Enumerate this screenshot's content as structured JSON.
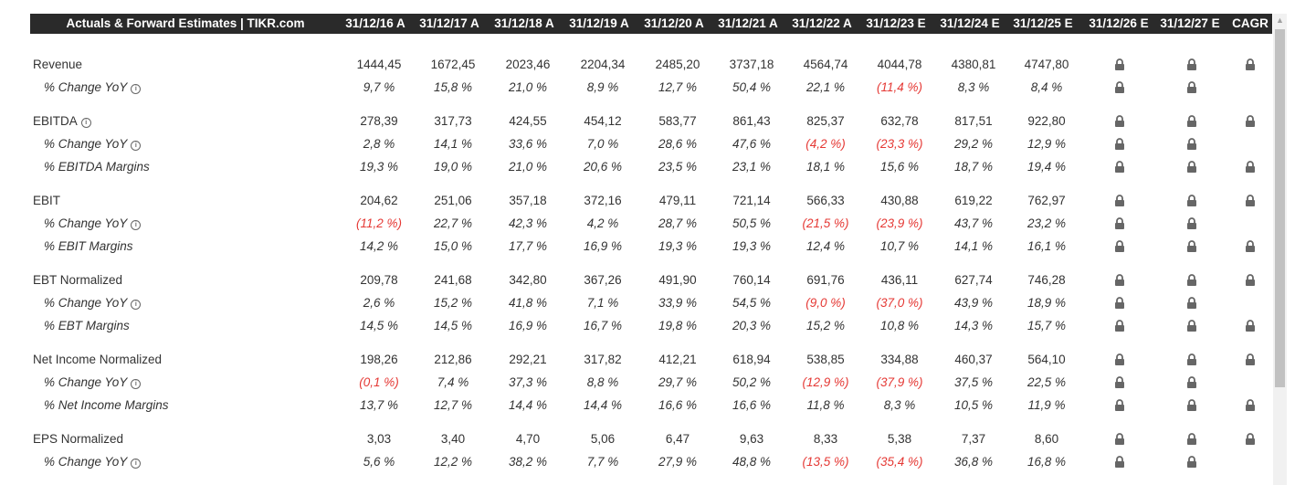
{
  "header": {
    "title": "Actuals & Forward Estimates | TIKR.com",
    "columns": [
      "31/12/16 A",
      "31/12/17 A",
      "31/12/18 A",
      "31/12/19 A",
      "31/12/20 A",
      "31/12/21 A",
      "31/12/22 A",
      "31/12/23 E",
      "31/12/24 E",
      "31/12/25 E",
      "31/12/26 E",
      "31/12/27 E",
      "CAGR"
    ]
  },
  "colors": {
    "header_bg": "#2a2a2a",
    "negative": "#e53935",
    "text": "#333333",
    "lock": "#666666"
  },
  "icons": {
    "info": "info-icon",
    "lock": "lock-icon"
  },
  "rows": [
    {
      "label": "Revenue",
      "type": "main",
      "gap": "first",
      "values": [
        "1444,45",
        "1672,45",
        "2023,46",
        "2204,34",
        "2485,20",
        "3737,18",
        "4564,74",
        "4044,78",
        "4380,81",
        "4747,80"
      ],
      "locks": [
        true,
        true,
        true
      ]
    },
    {
      "label": "% Change YoY",
      "type": "sub",
      "info": true,
      "values": [
        "9,7 %",
        "15,8 %",
        "21,0 %",
        "8,9 %",
        "12,7 %",
        "50,4 %",
        "22,1 %",
        "(11,4 %)",
        "8,3 %",
        "8,4 %"
      ],
      "locks": [
        true,
        true,
        false
      ]
    },
    {
      "label": "EBITDA",
      "type": "main",
      "gap": "gap",
      "info": true,
      "values": [
        "278,39",
        "317,73",
        "424,55",
        "454,12",
        "583,77",
        "861,43",
        "825,37",
        "632,78",
        "817,51",
        "922,80"
      ],
      "locks": [
        true,
        true,
        true
      ]
    },
    {
      "label": "% Change YoY",
      "type": "sub",
      "info": true,
      "values": [
        "2,8 %",
        "14,1 %",
        "33,6 %",
        "7,0 %",
        "28,6 %",
        "47,6 %",
        "(4,2 %)",
        "(23,3 %)",
        "29,2 %",
        "12,9 %"
      ],
      "locks": [
        true,
        true,
        false
      ]
    },
    {
      "label": "% EBITDA Margins",
      "type": "sub",
      "values": [
        "19,3 %",
        "19,0 %",
        "21,0 %",
        "20,6 %",
        "23,5 %",
        "23,1 %",
        "18,1 %",
        "15,6 %",
        "18,7 %",
        "19,4 %"
      ],
      "locks": [
        true,
        true,
        true
      ]
    },
    {
      "label": "EBIT",
      "type": "main",
      "gap": "gap",
      "values": [
        "204,62",
        "251,06",
        "357,18",
        "372,16",
        "479,11",
        "721,14",
        "566,33",
        "430,88",
        "619,22",
        "762,97"
      ],
      "locks": [
        true,
        true,
        true
      ]
    },
    {
      "label": "% Change YoY",
      "type": "sub",
      "info": true,
      "values": [
        "(11,2 %)",
        "22,7 %",
        "42,3 %",
        "4,2 %",
        "28,7 %",
        "50,5 %",
        "(21,5 %)",
        "(23,9 %)",
        "43,7 %",
        "23,2 %"
      ],
      "locks": [
        true,
        true,
        false
      ]
    },
    {
      "label": "% EBIT Margins",
      "type": "sub",
      "values": [
        "14,2 %",
        "15,0 %",
        "17,7 %",
        "16,9 %",
        "19,3 %",
        "19,3 %",
        "12,4 %",
        "10,7 %",
        "14,1 %",
        "16,1 %"
      ],
      "locks": [
        true,
        true,
        true
      ]
    },
    {
      "label": "EBT Normalized",
      "type": "main",
      "gap": "gap",
      "values": [
        "209,78",
        "241,68",
        "342,80",
        "367,26",
        "491,90",
        "760,14",
        "691,76",
        "436,11",
        "627,74",
        "746,28"
      ],
      "locks": [
        true,
        true,
        true
      ]
    },
    {
      "label": "% Change YoY",
      "type": "sub",
      "info": true,
      "values": [
        "2,6 %",
        "15,2 %",
        "41,8 %",
        "7,1 %",
        "33,9 %",
        "54,5 %",
        "(9,0 %)",
        "(37,0 %)",
        "43,9 %",
        "18,9 %"
      ],
      "locks": [
        true,
        true,
        false
      ]
    },
    {
      "label": "% EBT Margins",
      "type": "sub",
      "values": [
        "14,5 %",
        "14,5 %",
        "16,9 %",
        "16,7 %",
        "19,8 %",
        "20,3 %",
        "15,2 %",
        "10,8 %",
        "14,3 %",
        "15,7 %"
      ],
      "locks": [
        true,
        true,
        true
      ]
    },
    {
      "label": "Net Income Normalized",
      "type": "main",
      "gap": "gap",
      "values": [
        "198,26",
        "212,86",
        "292,21",
        "317,82",
        "412,21",
        "618,94",
        "538,85",
        "334,88",
        "460,37",
        "564,10"
      ],
      "locks": [
        true,
        true,
        true
      ]
    },
    {
      "label": "% Change YoY",
      "type": "sub",
      "info": true,
      "values": [
        "(0,1 %)",
        "7,4 %",
        "37,3 %",
        "8,8 %",
        "29,7 %",
        "50,2 %",
        "(12,9 %)",
        "(37,9 %)",
        "37,5 %",
        "22,5 %"
      ],
      "locks": [
        true,
        true,
        false
      ]
    },
    {
      "label": "% Net Income Margins",
      "type": "sub",
      "values": [
        "13,7 %",
        "12,7 %",
        "14,4 %",
        "14,4 %",
        "16,6 %",
        "16,6 %",
        "11,8 %",
        "8,3 %",
        "10,5 %",
        "11,9 %"
      ],
      "locks": [
        true,
        true,
        true
      ]
    },
    {
      "label": "EPS Normalized",
      "type": "main",
      "gap": "gap",
      "values": [
        "3,03",
        "3,40",
        "4,70",
        "5,06",
        "6,47",
        "9,63",
        "8,33",
        "5,38",
        "7,37",
        "8,60"
      ],
      "locks": [
        true,
        true,
        true
      ]
    },
    {
      "label": "% Change YoY",
      "type": "sub",
      "info": true,
      "values": [
        "5,6 %",
        "12,2 %",
        "38,2 %",
        "7,7 %",
        "27,9 %",
        "48,8 %",
        "(13,5 %)",
        "(35,4 %)",
        "36,8 %",
        "16,8 %"
      ],
      "locks": [
        true,
        true,
        false
      ]
    }
  ]
}
